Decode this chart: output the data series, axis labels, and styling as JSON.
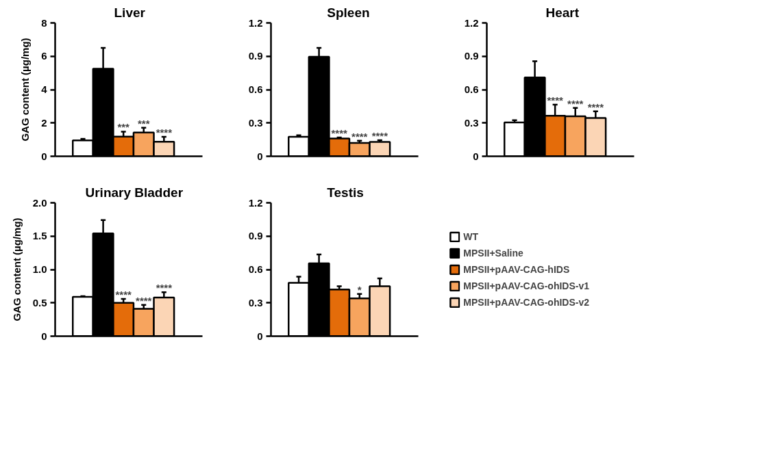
{
  "chart_data": [
    {
      "type": "bar",
      "title": "Liver",
      "ylabel": "GAG content (µg/mg)",
      "categories": [
        null
      ],
      "ylim": [
        0,
        8
      ],
      "yticks": [
        0,
        2,
        4,
        6,
        8
      ],
      "grid": false,
      "series": [
        {
          "color": "#ffffff",
          "values": [
            0.95
          ],
          "errors": [
            0.1
          ]
        },
        {
          "color": "#000000",
          "values": [
            5.25
          ],
          "errors": [
            1.25
          ]
        },
        {
          "color": "#e46c0a",
          "values": [
            1.18
          ],
          "errors": [
            0.3
          ]
        },
        {
          "color": "#f7a45e",
          "values": [
            1.43
          ],
          "errors": [
            0.28
          ]
        },
        {
          "color": "#fbd5b5",
          "values": [
            0.87
          ],
          "errors": [
            0.3
          ]
        }
      ],
      "annotations": [
        null,
        null,
        "***",
        "***",
        "****"
      ]
    },
    {
      "type": "bar",
      "title": "Spleen",
      "categories": [
        null
      ],
      "ylim": [
        0,
        1.2
      ],
      "yticks": [
        0,
        0.3,
        0.6,
        0.9,
        1.2
      ],
      "grid": false,
      "series": [
        {
          "color": "#ffffff",
          "values": [
            0.175
          ],
          "errors": [
            0.015
          ]
        },
        {
          "color": "#000000",
          "values": [
            0.895
          ],
          "errors": [
            0.08
          ]
        },
        {
          "color": "#e46c0a",
          "values": [
            0.16
          ],
          "errors": [
            0.01
          ]
        },
        {
          "color": "#f7a45e",
          "values": [
            0.12
          ],
          "errors": [
            0.02
          ]
        },
        {
          "color": "#fbd5b5",
          "values": [
            0.13
          ],
          "errors": [
            0.015
          ]
        }
      ],
      "annotations": [
        null,
        null,
        "****",
        "****",
        "****"
      ]
    },
    {
      "type": "bar",
      "title": "Heart",
      "categories": [
        null
      ],
      "ylim": [
        0,
        1.2
      ],
      "yticks": [
        0,
        0.3,
        0.6,
        0.9,
        1.2
      ],
      "grid": false,
      "series": [
        {
          "color": "#ffffff",
          "values": [
            0.305
          ],
          "errors": [
            0.02
          ]
        },
        {
          "color": "#000000",
          "values": [
            0.71
          ],
          "errors": [
            0.145
          ]
        },
        {
          "color": "#e46c0a",
          "values": [
            0.365
          ],
          "errors": [
            0.1
          ]
        },
        {
          "color": "#f7a45e",
          "values": [
            0.36
          ],
          "errors": [
            0.075
          ]
        },
        {
          "color": "#fbd5b5",
          "values": [
            0.345
          ],
          "errors": [
            0.06
          ]
        }
      ],
      "annotations": [
        null,
        null,
        "****",
        "****",
        "****"
      ]
    },
    {
      "type": "bar",
      "title": "Urinary Bladder",
      "ylabel": "GAG content (µg/mg)",
      "categories": [
        null
      ],
      "ylim": [
        0,
        2
      ],
      "yticks": [
        0,
        0.5,
        {
          "value": 1,
          "label": "1.0"
        },
        1.5,
        {
          "value": 2,
          "label": "2.0"
        }
      ],
      "grid": false,
      "series": [
        {
          "color": "#ffffff",
          "values": [
            0.59
          ],
          "errors": [
            0.01
          ]
        },
        {
          "color": "#000000",
          "values": [
            1.54
          ],
          "errors": [
            0.2
          ]
        },
        {
          "color": "#e46c0a",
          "values": [
            0.5
          ],
          "errors": [
            0.06
          ]
        },
        {
          "color": "#f7a45e",
          "values": [
            0.41
          ],
          "errors": [
            0.06
          ]
        },
        {
          "color": "#fbd5b5",
          "values": [
            0.58
          ],
          "errors": [
            0.08
          ]
        }
      ],
      "annotations": [
        null,
        null,
        "****",
        "****",
        "****"
      ]
    },
    {
      "type": "bar",
      "title": "Testis",
      "categories": [
        null
      ],
      "ylim": [
        0,
        1.2
      ],
      "yticks": [
        0,
        0.3,
        0.6,
        0.9,
        1.2
      ],
      "grid": false,
      "legend": "right",
      "series": [
        {
          "name": "WT",
          "color": "#ffffff",
          "values": [
            0.48
          ],
          "errors": [
            0.055
          ]
        },
        {
          "name": "MPSII+Saline",
          "color": "#000000",
          "values": [
            0.655
          ],
          "errors": [
            0.08
          ]
        },
        {
          "name": "MPSII+pAAV-CAG-hIDS",
          "color": "#e46c0a",
          "values": [
            0.42
          ],
          "errors": [
            0.03
          ]
        },
        {
          "name": "MPSII+pAAV-CAG-ohIDS-v1",
          "color": "#f7a45e",
          "values": [
            0.34
          ],
          "errors": [
            0.04
          ]
        },
        {
          "name": "MPSII+pAAV-CAG-ohIDS-v2",
          "color": "#fbd5b5",
          "values": [
            0.45
          ],
          "errors": [
            0.07
          ]
        }
      ],
      "annotations": [
        null,
        null,
        null,
        "*",
        null
      ]
    }
  ]
}
